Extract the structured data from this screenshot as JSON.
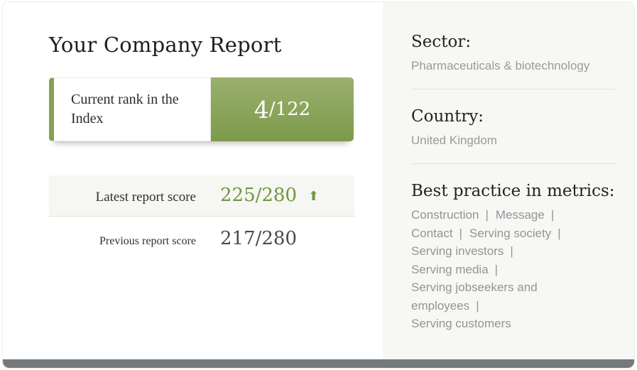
{
  "report": {
    "title": "Your Company Report",
    "rank": {
      "label": "Current rank in the Index",
      "value": "4",
      "separator": "/",
      "total": "122"
    },
    "latest": {
      "label": "Latest report score",
      "value": "225/280",
      "arrow": "⬆"
    },
    "previous": {
      "label": "Previous report score",
      "value": "217/280"
    }
  },
  "details": {
    "sector": {
      "label": "Sector:",
      "value": "Pharmaceuticals & biotechnology"
    },
    "country": {
      "label": "Country:",
      "value": "United Kingdom"
    },
    "best_practice": {
      "label": "Best practice in metrics:",
      "separator": "|",
      "items": [
        "Construction",
        "Message",
        "Contact",
        "Serving society",
        "Serving investors",
        "Serving media",
        "Serving jobseekers and employees",
        "Serving customers"
      ]
    }
  },
  "colors": {
    "green_gradient_top": "#9ab06f",
    "green_gradient_bottom": "#7d9a4a",
    "green_strip": "#85a254",
    "score_green": "#6f9740",
    "footer_gray": "#75797b",
    "right_pane_bg": "#f7f7f5",
    "row_bg": "#f6f6f3"
  }
}
